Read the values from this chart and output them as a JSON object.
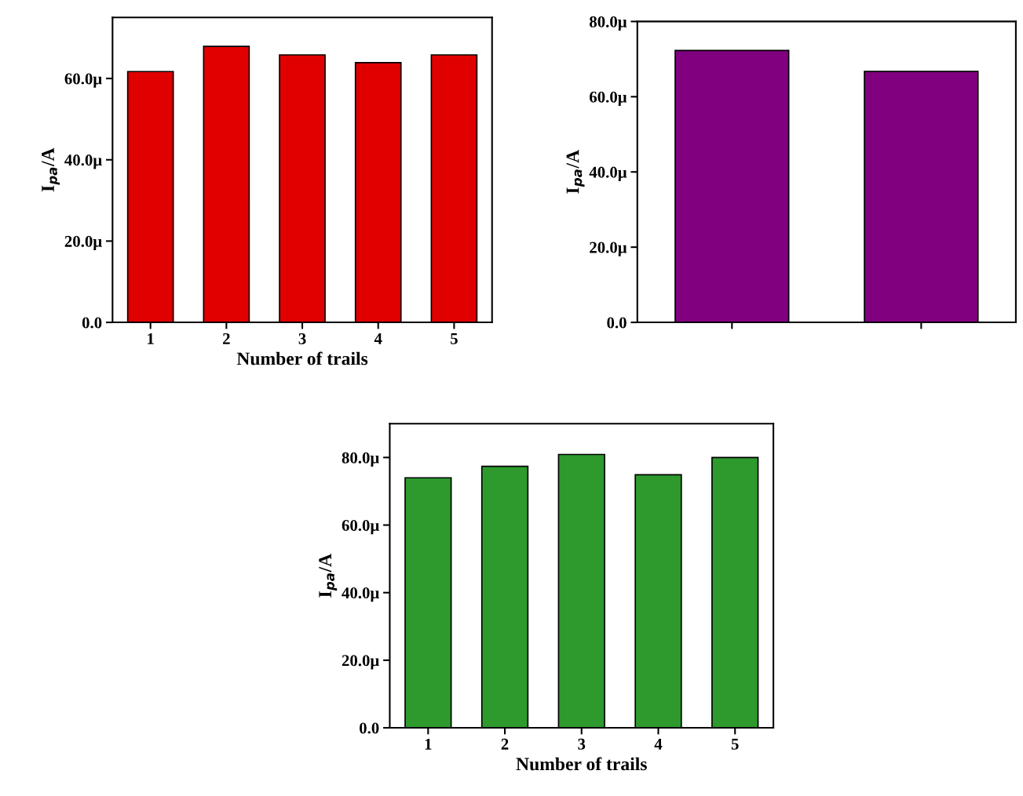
{
  "chart_data": [
    {
      "type": "bar",
      "categories": [
        "1",
        "2",
        "3",
        "4",
        "5"
      ],
      "values": [
        61.7,
        67.9,
        65.8,
        63.9,
        65.8
      ],
      "color": "#e00000",
      "xlabel": "Number of trails",
      "ylabel": "I$_{pa}$/A",
      "ylim": [
        0,
        75
      ],
      "yticks": [
        {
          "value": 0,
          "label": "0.0"
        },
        {
          "value": 20,
          "label": "20.0μ"
        },
        {
          "value": 40,
          "label": "40.0μ"
        },
        {
          "value": 60,
          "label": "60.0μ"
        }
      ],
      "grid": false
    },
    {
      "type": "bar",
      "categories": [
        null,
        null
      ],
      "values": [
        72.3,
        66.7
      ],
      "color": "#800080",
      "ylabel": "I$_{pa}$/A",
      "ylim": [
        0,
        80
      ],
      "yticks": [
        {
          "value": 0,
          "label": "0.0"
        },
        {
          "value": 20,
          "label": "20.0μ"
        },
        {
          "value": 40,
          "label": "40.0μ"
        },
        {
          "value": 60,
          "label": "60.0μ"
        },
        {
          "value": 80,
          "label": "80.0μ"
        }
      ],
      "grid": false
    },
    {
      "type": "bar",
      "categories": [
        "1",
        "2",
        "3",
        "4",
        "5"
      ],
      "values": [
        74.0,
        77.4,
        80.9,
        74.9,
        80.0
      ],
      "color": "#2e9a2e",
      "xlabel": "Number of trails",
      "ylabel": "I$_{pa}$/A",
      "ylim": [
        0,
        90
      ],
      "yticks": [
        {
          "value": 0,
          "label": "0.0"
        },
        {
          "value": 20,
          "label": "20.0μ"
        },
        {
          "value": 40,
          "label": "40.0μ"
        },
        {
          "value": 60,
          "label": "60.0μ"
        },
        {
          "value": 80,
          "label": "80.0μ"
        }
      ],
      "grid": false
    }
  ]
}
